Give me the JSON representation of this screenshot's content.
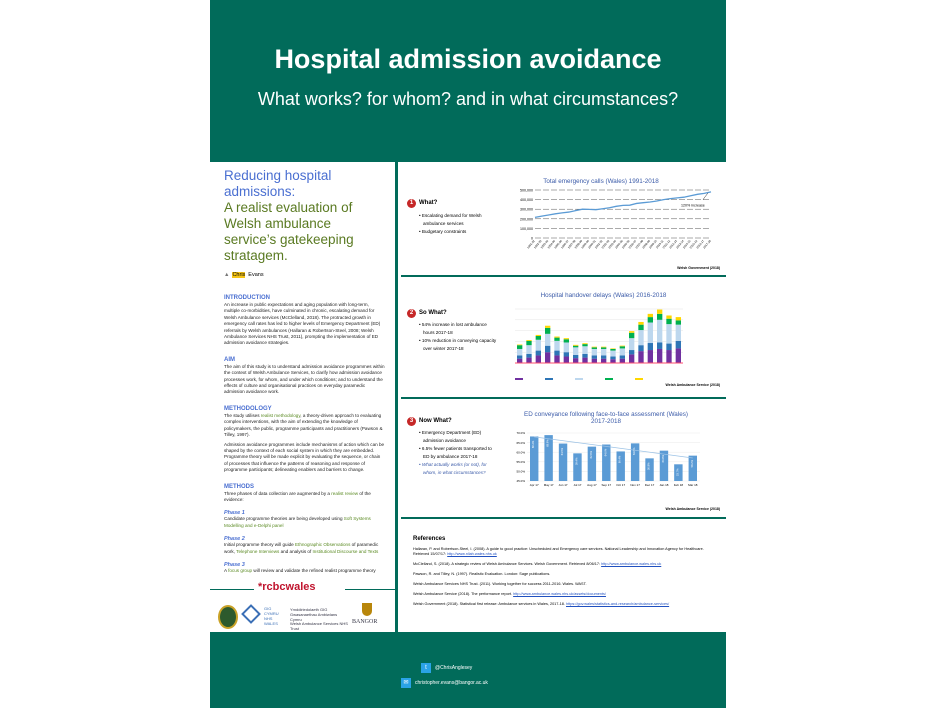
{
  "header": {
    "title": "Hospital admission avoidance",
    "subtitle": "What works? for whom? and in what circumstances?"
  },
  "left": {
    "title_line1": "Reducing hospital admissions:",
    "title_line2": "A realist evaluation of Welsh ambulance service’s gatekeeping stratagem.",
    "author_first": "Chris",
    "author_last": "Evans",
    "intro_h": "INTRODUCTION",
    "intro": "An increase in public expectations and aging population with long-term, multiple co-morbidities, have culminated in chronic, escalating demand for Welsh Ambulance services (McClelland, 2018). The protracted growth in emergency call rates has led to higher levels of Emergency Department (ED) referrals by Welsh ambulances (Hallaran & Robertson-Steel, 2008; Welsh Ambulance Services NHS Trust, 2011), prompting the implementation of ED admission avoidance strategies.",
    "aim_h": "AIM",
    "aim": "The aim of this study is to understand admission avoidance programmes within the context of Welsh Ambulance Services, to clarify how admission avoidance processes work, for whom, and under which conditions; and to understand the effects of culture and organisational practices on everyday paramedic admission avoidance work.",
    "meth_h": "METHODOLOGY",
    "meth1a": "The study utilises ",
    "meth1g": "realist methodology",
    "meth1b": ", a theory-driven approach to evaluating complex interventions, with the aim of extending the knowledge of policymakers, the public, programme participants and practitioners (Pawson & Tilley, 1997).",
    "meth2": "Admission avoidance programmes include mechanisms of action which can be shaped by the context of each social system in which they are embedded. Programme theory will be made explicit by evaluating the sequence, or chain of processes that influence the patterns of reasoning and response of programme participants; delineating enablers and barriers to change.",
    "methods_h": "METHODS",
    "methods_a": "Three phases of data collection are augmented by a ",
    "methods_g": "realist review",
    "methods_b": " of the evidence:",
    "p1_h": "Phase 1",
    "p1a": "Candidate programme theories are being developed using ",
    "p1g": "Soft Systems Modelling and e-Delphi panel",
    "p2_h": "Phase 2",
    "p2a": "Initial programme theory will guide ",
    "p2g1": "Ethnographic Observations",
    "p2b": " of paramedic work, ",
    "p2g2": "Telephone Interviews",
    "p2c": " and analysis of ",
    "p2g3": "Institutional Discourse and Texts",
    "p3_h": "Phase 3",
    "p3a": "A ",
    "p3g": "focus group",
    "p3b": " will review and validate the refined realist programme theory",
    "logos": {
      "rcbc": "*rcbcwales",
      "gig": "GIG CYMRU NHS WALES",
      "was_cy": "Ymddiriedolaeth GIG Gwasanaethau Ambiwlans Cymru",
      "was_en": "Welsh Ambulance Services NHS Trust",
      "bangor": "BANGOR"
    }
  },
  "panels": [
    {
      "num": "1",
      "q": "What?",
      "bullets": [
        "Escalating demand for Welsh ambulance services",
        "Budgetary constraints"
      ],
      "source": "Welsh Government (2018)"
    },
    {
      "num": "2",
      "q": "So What?",
      "bullets": [
        "54% increase in lost ambulance hours 2017-18",
        "10% reduction in conveying capacity over winter 2017-18"
      ],
      "source": "Welsh Ambulance Service (2018)"
    },
    {
      "num": "3",
      "q": "Now What?",
      "bullets": [
        "Emergency Department (ED) admission avoidance",
        "6.5% fewer patients transported to ED by ambulance 2017-18"
      ],
      "bullet_italic": "What actually works (or not), for whom, in what circumstances?",
      "source": "Welsh Ambulance Service (2018)"
    }
  ],
  "chart_data": [
    {
      "type": "line",
      "title": "Total emergency calls (Wales) 1991-2018",
      "annotation": "120% increase",
      "yticks": [
        "0",
        "100,000",
        "200,000",
        "300,000",
        "400,000",
        "500,000"
      ],
      "ylim": [
        0,
        500000
      ],
      "x": [
        "1991-92",
        "1992-93",
        "1993-94",
        "1994-95",
        "1995-96",
        "1996-97",
        "1997-98",
        "1998-99",
        "1999-00",
        "2000-01",
        "2001-02",
        "2002-03",
        "2003-04",
        "2004-05",
        "2005-06",
        "2006-07",
        "2007-08",
        "2008-09",
        "2009-10",
        "2010-11",
        "2011-12",
        "2012-13",
        "2013-14",
        "2014-15",
        "2015-16",
        "2016-17",
        "2017-18"
      ],
      "values": [
        215000,
        228000,
        240000,
        252000,
        262000,
        270000,
        285000,
        300000,
        298000,
        295000,
        305000,
        315000,
        330000,
        340000,
        342000,
        360000,
        368000,
        375000,
        385000,
        400000,
        410000,
        418000,
        425000,
        440000,
        455000,
        465000,
        480000
      ]
    },
    {
      "type": "bar",
      "stacked": true,
      "title": "Hospital handover delays (Wales) 2016-2018",
      "series": [
        {
          "name": "purple",
          "color": "#7030a0",
          "values": [
            400,
            500,
            700,
            1000,
            700,
            600,
            450,
            500,
            400,
            400,
            350,
            400,
            800,
            1100,
            1200,
            1300,
            1200,
            1350
          ]
        },
        {
          "name": "blue",
          "color": "#2e75b6",
          "values": [
            300,
            350,
            450,
            600,
            450,
            400,
            300,
            350,
            300,
            300,
            250,
            300,
            400,
            550,
            650,
            600,
            600,
            700
          ]
        },
        {
          "name": "light-blue",
          "color": "#bdd7ee",
          "values": [
            600,
            800,
            1000,
            1100,
            900,
            900,
            700,
            700,
            600,
            600,
            550,
            650,
            1100,
            1400,
            1900,
            2100,
            1800,
            1500
          ]
        },
        {
          "name": "green",
          "color": "#00b050",
          "values": [
            350,
            400,
            350,
            550,
            300,
            300,
            150,
            200,
            150,
            150,
            150,
            200,
            500,
            500,
            500,
            550,
            500,
            400
          ]
        },
        {
          "name": "yellow",
          "color": "#ffd700",
          "values": [
            60,
            80,
            100,
            200,
            100,
            100,
            80,
            80,
            60,
            60,
            50,
            60,
            150,
            250,
            300,
            400,
            300,
            300
          ]
        }
      ],
      "ylim": [
        0,
        5000
      ]
    },
    {
      "type": "bar",
      "title": "ED conveyance following face-to-face assessment (Wales) 2017-2018",
      "categories": [
        "Apr 17",
        "May 17",
        "Jun 17",
        "Jul 17",
        "Aug 17",
        "Sep 17",
        "Oct 17",
        "Nov 17",
        "Dec 17",
        "Jan 18",
        "Feb 18",
        "Mar 18"
      ],
      "values": [
        68.2,
        68.9,
        64.5,
        59.4,
        62.9,
        64.0,
        60.4,
        64.6,
        56.8,
        60.8,
        53.7,
        58.2
      ],
      "yticks": [
        "45.0%",
        "50.0%",
        "55.0%",
        "60.0%",
        "65.0%",
        "70.0%"
      ],
      "ylim": [
        45,
        70
      ],
      "trendline": true
    }
  ],
  "references": {
    "heading": "References",
    "items": [
      {
        "text": "Hallaran, P. and Robertson-Steel, I. (2008). A guide to good practice: Unscheduled and Emergency care services. National Leadership and Innovation Agency for Healthcare. Retrieved 15/07/17: ",
        "link": "http://www.nliah.wales.nhs.uk"
      },
      {
        "text": "McClelland, S. (2018). A strategic review of Welsh Ambulance Services. Welsh Government. Retrieved 8/06/17: ",
        "link": "http://www.ambulance.wales.nhs.uk"
      },
      {
        "text": "Pawson, R. and Tilley, N. (1997). Realistic Evaluation. London: Sage publications.",
        "link": ""
      },
      {
        "text": "Welsh Ambulance Services NHS Trust. (2011). Working together for success 2011-2016. Wales. WAST.",
        "link": ""
      },
      {
        "text": "Welsh Ambulance Service (2018). The performance report. ",
        "link": "http://www.ambulance.wales.nhs.uk/assets/documents/"
      },
      {
        "text": "Welsh Government (2018). Statistical first release: Ambulance services in Wales, 2017-18. ",
        "link": "https://gov.wales/statistics-and-research/ambulance-services/"
      }
    ]
  },
  "footer": {
    "twitter": "@ChrisAnglesey",
    "email": "christopher.evans@bangor.ac.uk"
  }
}
